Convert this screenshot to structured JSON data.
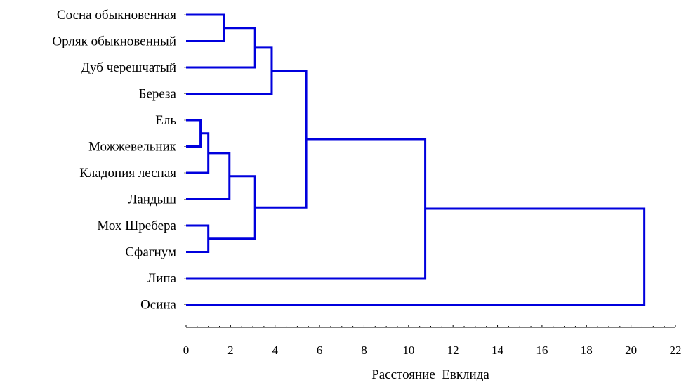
{
  "chart_data": {
    "type": "dendrogram",
    "title": "",
    "xlabel": "Расстояние  Евклида",
    "ylabel": "",
    "xlim": [
      0,
      22
    ],
    "x_ticks": [
      "0",
      "2",
      "4",
      "6",
      "8",
      "10",
      "12",
      "14",
      "16",
      "18",
      "20",
      "22"
    ],
    "grid": false,
    "link_color": "#0000dd",
    "leaves": [
      "Сосна обыкновенная",
      "Орляк обыкновенный",
      "Дуб черешчатый",
      "Береза",
      "Ель",
      "Можжевельник",
      "Кладония лесная",
      "Ландыш",
      "Мох Шребера",
      "Сфагнум",
      "Липа",
      "Осина"
    ],
    "merges": [
      {
        "left": "Сосна обыкновенная",
        "right": "Орляк обыкновенный",
        "distance": 1.7
      },
      {
        "left": "Ель",
        "right": "Можжевельник",
        "distance": 0.65
      },
      {
        "left": "Мох Шребера",
        "right": "Сфагнум",
        "distance": 1.0
      },
      {
        "left": "Ель, Можжевельник",
        "right": "Кладония лесная",
        "distance": 1.0
      },
      {
        "left": "Ель, Можжевельник, Кладония лесная",
        "right": "Ландыш",
        "distance": 1.95
      },
      {
        "left": "Сосна обыкновенная, Орляк обыкновенный",
        "right": "Дуб черешчатый",
        "distance": 3.1
      },
      {
        "left": "Ель ... Ландыш",
        "right": "Мох Шребера, Сфагнум",
        "distance": 3.1
      },
      {
        "left": "Сосна ... Дуб черешчатый",
        "right": "Береза",
        "distance": 3.85
      },
      {
        "left": "Сосна ... Береза",
        "right": "Ель ... Сфагнум",
        "distance": 5.4
      },
      {
        "left": "Сосна ... Сфагнум",
        "right": "Липа",
        "distance": 10.75
      },
      {
        "left": "Сосна ... Липа",
        "right": "Осина",
        "distance": 20.6
      }
    ]
  }
}
